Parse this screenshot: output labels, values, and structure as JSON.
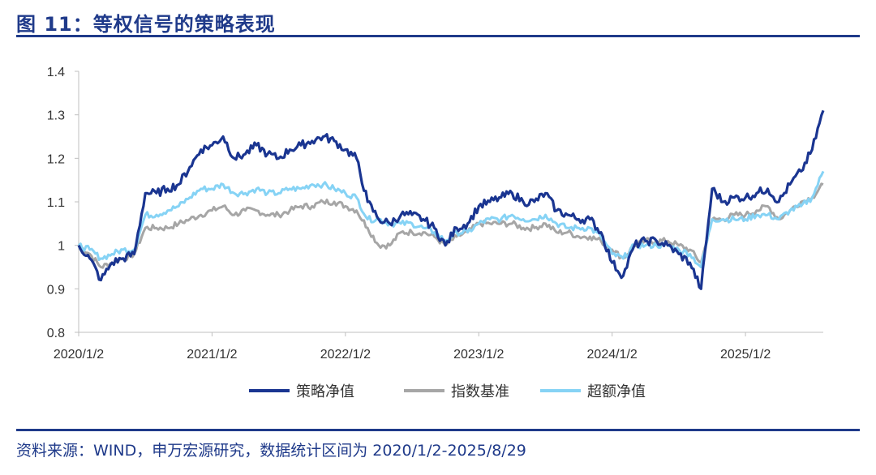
{
  "title": "图 11：等权信号的策略表现",
  "source": "资料来源：WIND，申万宏源研究，数据统计区间为 2020/1/2-2025/8/29",
  "chart_data": {
    "type": "line",
    "title": "等权信号的策略表现",
    "xlabel": "",
    "ylabel": "",
    "ylim": [
      0.8,
      1.4
    ],
    "yticks": [
      "0.8",
      "0.9",
      "1",
      "1.1",
      "1.2",
      "1.3",
      "1.4"
    ],
    "yticks_values": [
      0.8,
      0.9,
      1.0,
      1.1,
      1.2,
      1.3,
      1.4
    ],
    "xticks": [
      "2020/1/2",
      "2021/1/2",
      "2022/1/2",
      "2023/1/2",
      "2024/1/2",
      "2025/1/2"
    ],
    "x_start": "2020-01",
    "x_end": "2025-08",
    "x_frequency": "monthly (approx.)",
    "grid": false,
    "legend": "bottom",
    "series": [
      {
        "name": "策略净值",
        "color": "#1a3591",
        "values": [
          1.0,
          0.97,
          0.92,
          0.96,
          0.97,
          0.98,
          1.12,
          1.12,
          1.13,
          1.14,
          1.18,
          1.22,
          1.23,
          1.25,
          1.2,
          1.21,
          1.23,
          1.21,
          1.2,
          1.22,
          1.23,
          1.24,
          1.25,
          1.24,
          1.22,
          1.2,
          1.1,
          1.06,
          1.05,
          1.07,
          1.07,
          1.06,
          1.04,
          1.0,
          1.04,
          1.05,
          1.09,
          1.1,
          1.11,
          1.12,
          1.1,
          1.1,
          1.12,
          1.08,
          1.07,
          1.06,
          1.06,
          1.03,
          0.96,
          0.93,
          1.0,
          1.01,
          1.01,
          1.0,
          0.98,
          0.96,
          0.9,
          1.13,
          1.1,
          1.11,
          1.11,
          1.12,
          1.13,
          1.1,
          1.14,
          1.17,
          1.22,
          1.31
        ]
      },
      {
        "name": "指数基准",
        "color": "#a6a6a6",
        "values": [
          1.0,
          0.98,
          0.95,
          0.96,
          0.97,
          0.98,
          1.04,
          1.04,
          1.04,
          1.05,
          1.06,
          1.07,
          1.08,
          1.09,
          1.07,
          1.08,
          1.08,
          1.07,
          1.07,
          1.08,
          1.09,
          1.09,
          1.1,
          1.1,
          1.09,
          1.08,
          1.04,
          1.0,
          1.0,
          1.03,
          1.03,
          1.03,
          1.02,
          1.0,
          1.02,
          1.03,
          1.05,
          1.05,
          1.05,
          1.05,
          1.04,
          1.04,
          1.05,
          1.03,
          1.03,
          1.02,
          1.02,
          1.01,
          0.99,
          0.97,
          1.0,
          1.01,
          1.01,
          1.01,
          1.0,
          0.99,
          0.96,
          1.06,
          1.06,
          1.07,
          1.07,
          1.08,
          1.09,
          1.06,
          1.08,
          1.1,
          1.11,
          1.14
        ]
      },
      {
        "name": "超额净值",
        "color": "#86d3f5",
        "values": [
          1.0,
          0.99,
          0.97,
          0.98,
          0.99,
          0.99,
          1.07,
          1.07,
          1.08,
          1.09,
          1.11,
          1.13,
          1.13,
          1.14,
          1.12,
          1.12,
          1.13,
          1.12,
          1.12,
          1.13,
          1.13,
          1.14,
          1.14,
          1.13,
          1.12,
          1.11,
          1.06,
          1.06,
          1.05,
          1.05,
          1.05,
          1.04,
          1.03,
          1.01,
          1.03,
          1.03,
          1.05,
          1.06,
          1.06,
          1.07,
          1.06,
          1.06,
          1.07,
          1.05,
          1.04,
          1.04,
          1.04,
          1.02,
          0.98,
          0.97,
          1.0,
          1.0,
          1.0,
          1.0,
          0.99,
          0.98,
          0.95,
          1.06,
          1.06,
          1.06,
          1.06,
          1.07,
          1.07,
          1.06,
          1.08,
          1.09,
          1.11,
          1.17
        ]
      }
    ]
  }
}
